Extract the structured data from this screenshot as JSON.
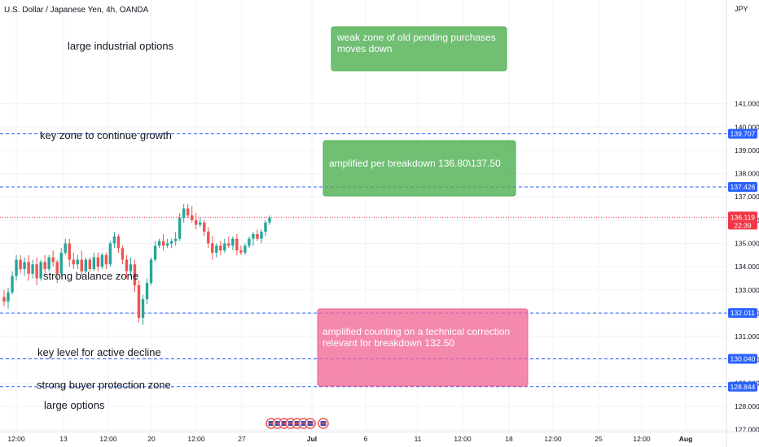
{
  "header": {
    "symbol_title": "U.S. Dollar / Japanese Yen, 4h, OANDA"
  },
  "axis": {
    "currency": "JPY"
  },
  "colors": {
    "up": "#26a69a",
    "down": "#ef5350",
    "grid": "#f0f3fa",
    "hline": "#2962ff",
    "current_price": "#f23645",
    "text": "#131722",
    "axis_text": "#131722",
    "green_box": "#4caf50",
    "pink_box": "#f06292"
  },
  "chart_data": {
    "type": "candlestick",
    "title": "U.S. Dollar / Japanese Yen, 4h, OANDA",
    "ylabel": "JPY",
    "ylim": [
      127.0,
      141.0
    ],
    "grid": true,
    "y_ticks": [
      "141.000",
      "140.000",
      "139.000",
      "138.000",
      "137.000",
      "136.000",
      "135.000",
      "134.000",
      "133.000",
      "132.000",
      "131.000",
      "130.000",
      "129.000",
      "128.000",
      "127.000"
    ],
    "x_ticks": [
      "12:00",
      "13",
      "12:00",
      "20",
      "12:00",
      "27",
      "Jul",
      "6",
      "11",
      "12:00",
      "18",
      "12:00",
      "25",
      "12:00",
      "Aug"
    ],
    "candles": [
      {
        "o": 132.7,
        "h": 133.0,
        "l": 132.3,
        "c": 132.5
      },
      {
        "o": 132.5,
        "h": 133.1,
        "l": 132.2,
        "c": 132.9
      },
      {
        "o": 132.9,
        "h": 133.8,
        "l": 132.8,
        "c": 133.6
      },
      {
        "o": 133.6,
        "h": 134.5,
        "l": 133.4,
        "c": 134.3
      },
      {
        "o": 134.3,
        "h": 134.5,
        "l": 133.7,
        "c": 133.9
      },
      {
        "o": 133.9,
        "h": 134.4,
        "l": 133.6,
        "c": 134.2
      },
      {
        "o": 134.2,
        "h": 134.5,
        "l": 133.4,
        "c": 133.7
      },
      {
        "o": 133.7,
        "h": 134.3,
        "l": 133.5,
        "c": 134.1
      },
      {
        "o": 134.1,
        "h": 134.4,
        "l": 133.2,
        "c": 133.5
      },
      {
        "o": 133.5,
        "h": 134.3,
        "l": 133.4,
        "c": 134.2
      },
      {
        "o": 134.2,
        "h": 134.5,
        "l": 133.7,
        "c": 133.9
      },
      {
        "o": 133.9,
        "h": 134.5,
        "l": 133.8,
        "c": 134.4
      },
      {
        "o": 134.4,
        "h": 134.7,
        "l": 134.0,
        "c": 134.2
      },
      {
        "o": 134.2,
        "h": 134.3,
        "l": 133.3,
        "c": 133.7
      },
      {
        "o": 133.7,
        "h": 134.8,
        "l": 133.6,
        "c": 134.6
      },
      {
        "o": 134.6,
        "h": 135.2,
        "l": 134.5,
        "c": 135.0
      },
      {
        "o": 135.0,
        "h": 135.2,
        "l": 134.0,
        "c": 134.3
      },
      {
        "o": 134.3,
        "h": 134.6,
        "l": 133.9,
        "c": 134.1
      },
      {
        "o": 134.1,
        "h": 134.5,
        "l": 133.9,
        "c": 134.3
      },
      {
        "o": 134.3,
        "h": 134.7,
        "l": 133.6,
        "c": 133.8
      },
      {
        "o": 133.8,
        "h": 134.4,
        "l": 133.7,
        "c": 134.3
      },
      {
        "o": 134.3,
        "h": 134.4,
        "l": 133.8,
        "c": 133.9
      },
      {
        "o": 133.9,
        "h": 134.6,
        "l": 133.8,
        "c": 134.4
      },
      {
        "o": 134.4,
        "h": 134.6,
        "l": 133.8,
        "c": 134.0
      },
      {
        "o": 134.0,
        "h": 134.6,
        "l": 133.9,
        "c": 134.5
      },
      {
        "o": 134.5,
        "h": 134.6,
        "l": 133.9,
        "c": 134.1
      },
      {
        "o": 134.1,
        "h": 135.1,
        "l": 134.0,
        "c": 135.0
      },
      {
        "o": 135.0,
        "h": 135.5,
        "l": 134.8,
        "c": 135.3
      },
      {
        "o": 135.3,
        "h": 135.4,
        "l": 134.6,
        "c": 134.8
      },
      {
        "o": 134.8,
        "h": 134.9,
        "l": 134.1,
        "c": 134.3
      },
      {
        "o": 134.3,
        "h": 134.5,
        "l": 133.5,
        "c": 133.8
      },
      {
        "o": 133.8,
        "h": 134.4,
        "l": 133.6,
        "c": 134.1
      },
      {
        "o": 134.1,
        "h": 134.3,
        "l": 132.9,
        "c": 133.2
      },
      {
        "o": 133.2,
        "h": 133.4,
        "l": 131.6,
        "c": 131.8
      },
      {
        "o": 131.8,
        "h": 132.8,
        "l": 131.5,
        "c": 132.6
      },
      {
        "o": 132.6,
        "h": 133.5,
        "l": 132.4,
        "c": 133.3
      },
      {
        "o": 133.3,
        "h": 134.4,
        "l": 133.2,
        "c": 134.3
      },
      {
        "o": 134.3,
        "h": 135.1,
        "l": 134.2,
        "c": 134.9
      },
      {
        "o": 134.9,
        "h": 135.2,
        "l": 134.8,
        "c": 135.1
      },
      {
        "o": 135.1,
        "h": 135.4,
        "l": 134.7,
        "c": 134.9
      },
      {
        "o": 134.9,
        "h": 135.2,
        "l": 134.8,
        "c": 135.0
      },
      {
        "o": 135.0,
        "h": 135.2,
        "l": 134.8,
        "c": 135.1
      },
      {
        "o": 135.1,
        "h": 135.5,
        "l": 134.9,
        "c": 135.2
      },
      {
        "o": 135.2,
        "h": 136.3,
        "l": 135.1,
        "c": 136.1
      },
      {
        "o": 136.1,
        "h": 136.7,
        "l": 135.9,
        "c": 136.5
      },
      {
        "o": 136.5,
        "h": 136.7,
        "l": 136.1,
        "c": 136.2
      },
      {
        "o": 136.2,
        "h": 136.6,
        "l": 135.9,
        "c": 136.0
      },
      {
        "o": 136.0,
        "h": 136.3,
        "l": 135.6,
        "c": 135.8
      },
      {
        "o": 135.8,
        "h": 136.1,
        "l": 135.7,
        "c": 135.9
      },
      {
        "o": 135.9,
        "h": 136.0,
        "l": 135.3,
        "c": 135.5
      },
      {
        "o": 135.5,
        "h": 135.7,
        "l": 134.8,
        "c": 135.0
      },
      {
        "o": 135.0,
        "h": 135.3,
        "l": 134.3,
        "c": 134.6
      },
      {
        "o": 134.6,
        "h": 135.0,
        "l": 134.4,
        "c": 134.9
      },
      {
        "o": 134.9,
        "h": 135.1,
        "l": 134.5,
        "c": 134.7
      },
      {
        "o": 134.7,
        "h": 135.2,
        "l": 134.6,
        "c": 135.0
      },
      {
        "o": 135.0,
        "h": 135.3,
        "l": 134.8,
        "c": 134.9
      },
      {
        "o": 134.9,
        "h": 135.3,
        "l": 134.7,
        "c": 135.2
      },
      {
        "o": 135.2,
        "h": 135.4,
        "l": 134.5,
        "c": 134.7
      },
      {
        "o": 134.7,
        "h": 134.9,
        "l": 134.5,
        "c": 134.6
      },
      {
        "o": 134.6,
        "h": 135.0,
        "l": 134.5,
        "c": 134.9
      },
      {
        "o": 134.9,
        "h": 135.3,
        "l": 134.8,
        "c": 135.2
      },
      {
        "o": 135.2,
        "h": 135.5,
        "l": 134.9,
        "c": 135.4
      },
      {
        "o": 135.4,
        "h": 135.6,
        "l": 135.1,
        "c": 135.2
      },
      {
        "o": 135.2,
        "h": 135.6,
        "l": 135.0,
        "c": 135.5
      },
      {
        "o": 135.5,
        "h": 136.0,
        "l": 135.3,
        "c": 135.9
      },
      {
        "o": 135.9,
        "h": 136.2,
        "l": 135.8,
        "c": 136.1
      }
    ],
    "levels": [
      {
        "price": 139.707,
        "label": "139.707"
      },
      {
        "price": 137.426,
        "label": "137.426"
      },
      {
        "price": 132.011,
        "label": "132.011"
      },
      {
        "price": 130.04,
        "label": "130.040"
      },
      {
        "price": 128.844,
        "label": "128.844"
      }
    ],
    "current_price": {
      "price": 136.119,
      "label": "136.119",
      "countdown": "22:39"
    },
    "annotations": [
      "large industrial options",
      "key zone to continue growth",
      "strong balance zone",
      "key level for active decline",
      "strong buyer protection zone",
      "large options"
    ],
    "boxes": [
      {
        "text1": "weak zone of  old pending purchases",
        "text2": "moves down"
      },
      {
        "text1": "amplified per breakdown  136.80\\137.50",
        "text2": ""
      },
      {
        "text1": "amplified counting on a technical correction",
        "text2": "relevant for breakdown 132.50"
      }
    ]
  }
}
